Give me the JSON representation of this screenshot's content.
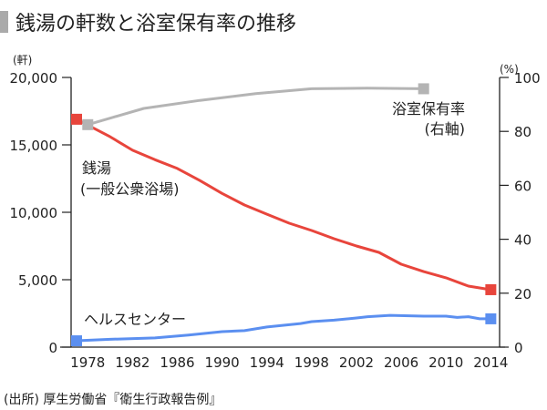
{
  "chart_data": {
    "type": "line",
    "title": "銭湯の軒数と浴室保有率の推移",
    "left_axis": {
      "unit_label": "(軒)",
      "ylim": [
        0,
        20000
      ],
      "ticks": [
        "0",
        "5,000",
        "10,000",
        "15,000",
        "20,000"
      ],
      "tick_values": [
        0,
        5000,
        10000,
        15000,
        20000
      ]
    },
    "right_axis": {
      "unit_label": "(%)",
      "ylim": [
        0,
        100
      ],
      "ticks": [
        "0",
        "20",
        "40",
        "60",
        "80",
        "100"
      ],
      "tick_values": [
        0,
        20,
        40,
        60,
        80,
        100
      ]
    },
    "xlim": [
      1977,
      2014
    ],
    "x_ticks": [
      "1978",
      "1982",
      "1986",
      "1990",
      "1994",
      "1998",
      "2002",
      "2006",
      "2010",
      "2014"
    ],
    "x_tick_values": [
      1978,
      1982,
      1986,
      1990,
      1994,
      1998,
      2002,
      2006,
      2010,
      2014
    ],
    "series": [
      {
        "name": "銭湯",
        "label_line1": "銭湯",
        "label_line2": "(一般公衆浴場)",
        "axis": "left",
        "color": "#e8453c",
        "x": [
          1977,
          1980,
          1982,
          1984,
          1986,
          1988,
          1990,
          1992,
          1994,
          1996,
          1998,
          2000,
          2002,
          2004,
          2006,
          2008,
          2010,
          2012,
          2014
        ],
        "values": [
          16900,
          15600,
          14600,
          13900,
          13250,
          12360,
          11400,
          10540,
          9860,
          9190,
          8650,
          8040,
          7500,
          7030,
          6150,
          5600,
          5140,
          4530,
          4260
        ]
      },
      {
        "name": "ヘルスセンター",
        "label_line1": "ヘルスセンター",
        "axis": "left",
        "color": "#5b8ff0",
        "x": [
          1977,
          1980,
          1984,
          1987,
          1990,
          1992,
          1994,
          1997,
          1998,
          2000,
          2002,
          2003,
          2005,
          2008,
          2010,
          2011,
          2012,
          2013,
          2014
        ],
        "values": [
          470,
          580,
          680,
          900,
          1150,
          1220,
          1490,
          1750,
          1890,
          2000,
          2160,
          2260,
          2360,
          2300,
          2300,
          2200,
          2260,
          2100,
          2100
        ]
      },
      {
        "name": "浴室保有率",
        "label_line1": "浴室保有率",
        "label_line2": "(右軸)",
        "axis": "right",
        "color": "#b4b4b4",
        "x": [
          1978,
          1983,
          1988,
          1993,
          1998,
          2003,
          2008
        ],
        "values": [
          82.5,
          88.5,
          91.5,
          94,
          95.8,
          96,
          95.8
        ]
      }
    ],
    "source": "(出所) 厚生労働省『衛生行政報告例』",
    "grid": false
  }
}
